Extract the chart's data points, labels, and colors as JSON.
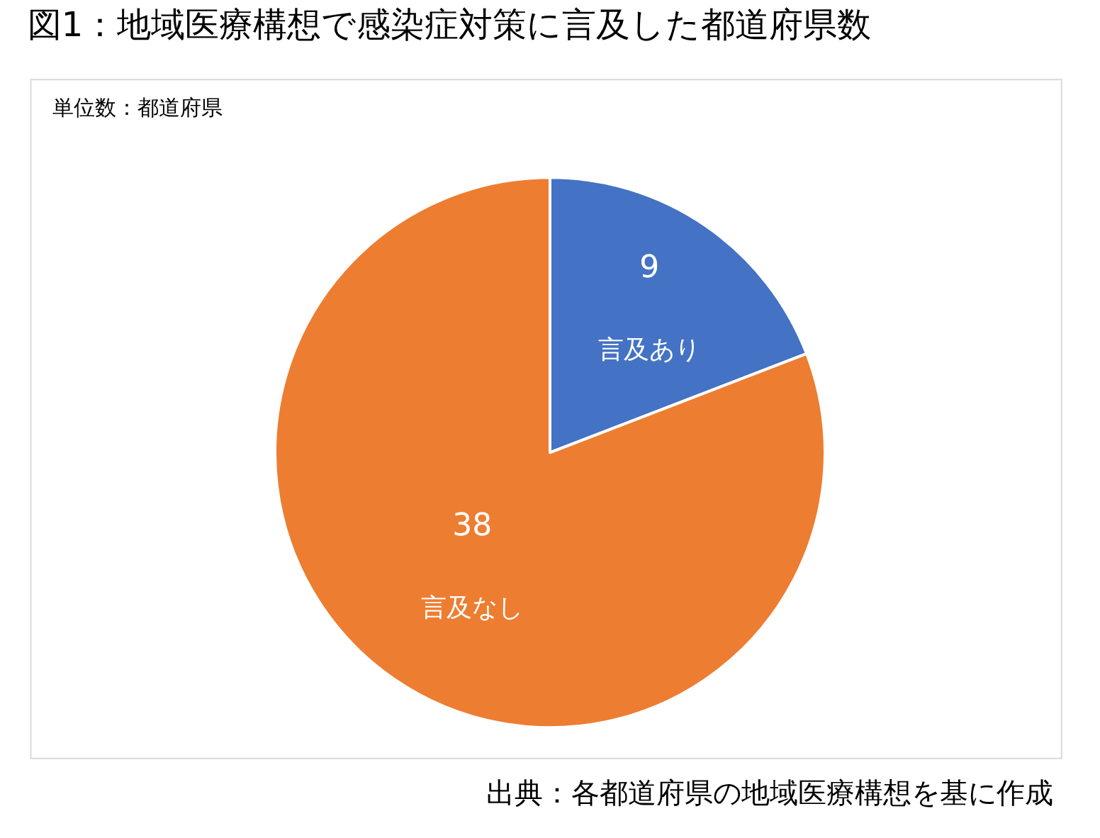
{
  "chart_data": {
    "type": "pie",
    "title": "図1：地域医療構想で感染症対策に言及した都道府県数",
    "annotations": [
      "単位数：都道府県",
      "出典：各都道府県の地域医療構想を基に作成"
    ],
    "categories": [
      "言及あり",
      "言及なし"
    ],
    "values": [
      9,
      38
    ],
    "colors": [
      "#4472c4",
      "#ed7d31"
    ],
    "data_labels": true,
    "legend": false
  }
}
